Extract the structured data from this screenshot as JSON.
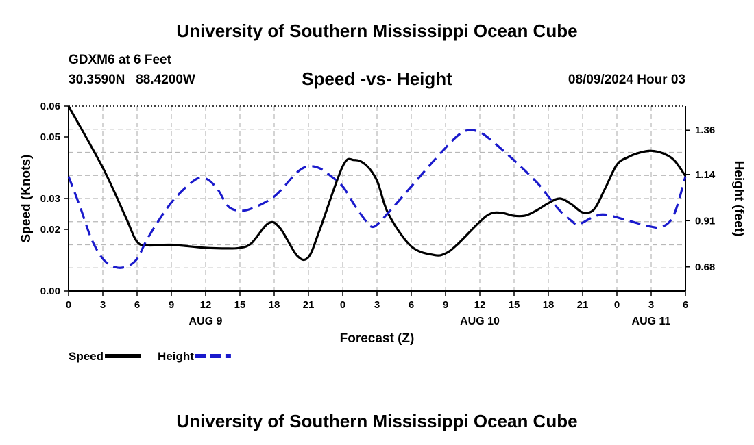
{
  "header": {
    "title": "University of Southern Mississippi Ocean Cube",
    "station": "GDXM6 at 6 Feet",
    "coordinates": "30.3590N   88.4200W",
    "run_time": "08/09/2024 Hour 03"
  },
  "footer": {
    "title": "University of Southern Mississippi Ocean Cube"
  },
  "colors": {
    "speed": "#000000",
    "height": "#1a1acc",
    "grid": "#b8b8b8"
  },
  "chart_data": {
    "type": "line",
    "title": "Speed -vs- Height",
    "xlabel": "Forecast (Z)",
    "ylabel_left": "Speed (Knots)",
    "ylabel_right": "Height (feet)",
    "x_range": [
      0,
      54
    ],
    "x_tick_labels": [
      "0",
      "3",
      "6",
      "9",
      "12",
      "15",
      "18",
      "21",
      "0",
      "3",
      "6",
      "9",
      "12",
      "15",
      "18",
      "21",
      "0",
      "3",
      "6"
    ],
    "date_labels": [
      {
        "label": "AUG 9",
        "at": 12
      },
      {
        "label": "AUG 10",
        "at": 36
      },
      {
        "label": "AUG 11",
        "at": 51
      }
    ],
    "left_axis": {
      "range": [
        0,
        0.06
      ],
      "ticks": [
        0.0,
        0.02,
        0.03,
        0.05,
        0.06
      ],
      "tick_labels": [
        "0.00",
        "0.02",
        "0.03",
        "0.05",
        "0.06"
      ]
    },
    "right_axis": {
      "range": [
        0.56,
        1.48
      ],
      "ticks": [
        0.68,
        0.91,
        1.14,
        1.36
      ],
      "tick_labels": [
        "0.68",
        "0.91",
        "1.14",
        "1.36"
      ]
    },
    "legend": [
      {
        "name": "Speed",
        "style": "solid"
      },
      {
        "name": "Height",
        "style": "dashed"
      }
    ],
    "series": [
      {
        "name": "Speed",
        "axis": "left",
        "points": [
          [
            0,
            0.06
          ],
          [
            3,
            0.04
          ],
          [
            5,
            0.024
          ],
          [
            6,
            0.016
          ],
          [
            7,
            0.0148
          ],
          [
            9,
            0.015
          ],
          [
            12,
            0.014
          ],
          [
            14,
            0.0138
          ],
          [
            15,
            0.014
          ],
          [
            16,
            0.0155
          ],
          [
            17.5,
            0.022
          ],
          [
            18.5,
            0.0205
          ],
          [
            20,
            0.0115
          ],
          [
            21,
            0.011
          ],
          [
            22,
            0.02
          ],
          [
            24,
            0.0405
          ],
          [
            25,
            0.0425
          ],
          [
            26,
            0.041
          ],
          [
            27,
            0.0358
          ],
          [
            28,
            0.025
          ],
          [
            30,
            0.0145
          ],
          [
            32,
            0.0117
          ],
          [
            33,
            0.0122
          ],
          [
            34,
            0.015
          ],
          [
            36,
            0.0225
          ],
          [
            37,
            0.0252
          ],
          [
            38,
            0.0253
          ],
          [
            39,
            0.0244
          ],
          [
            40,
            0.0245
          ],
          [
            41,
            0.0262
          ],
          [
            42,
            0.0285
          ],
          [
            43,
            0.03
          ],
          [
            44,
            0.0282
          ],
          [
            45,
            0.0255
          ],
          [
            46,
            0.0265
          ],
          [
            47,
            0.0335
          ],
          [
            48,
            0.041
          ],
          [
            49,
            0.0435
          ],
          [
            50,
            0.0449
          ],
          [
            51,
            0.0455
          ],
          [
            52,
            0.0447
          ],
          [
            53,
            0.0425
          ],
          [
            54,
            0.0373
          ]
        ]
      },
      {
        "name": "Height",
        "axis": "right",
        "points": [
          [
            0,
            1.13
          ],
          [
            1,
            0.98
          ],
          [
            2,
            0.82
          ],
          [
            3,
            0.72
          ],
          [
            4,
            0.68
          ],
          [
            5,
            0.68
          ],
          [
            6,
            0.72
          ],
          [
            7,
            0.83
          ],
          [
            9,
            1.0
          ],
          [
            11,
            1.11
          ],
          [
            12,
            1.12
          ],
          [
            13,
            1.07
          ],
          [
            14,
            0.98
          ],
          [
            15,
            0.96
          ],
          [
            16,
            0.97
          ],
          [
            18,
            1.03
          ],
          [
            20,
            1.15
          ],
          [
            21,
            1.18
          ],
          [
            22,
            1.17
          ],
          [
            23,
            1.13
          ],
          [
            24,
            1.08
          ],
          [
            25,
            0.99
          ],
          [
            26,
            0.91
          ],
          [
            26.5,
            0.88
          ],
          [
            27,
            0.89
          ],
          [
            28,
            0.95
          ],
          [
            30,
            1.08
          ],
          [
            32,
            1.21
          ],
          [
            34,
            1.33
          ],
          [
            35,
            1.36
          ],
          [
            36,
            1.35
          ],
          [
            37,
            1.31
          ],
          [
            39,
            1.21
          ],
          [
            41,
            1.1
          ],
          [
            42,
            1.03
          ],
          [
            43,
            0.96
          ],
          [
            44,
            0.91
          ],
          [
            44.5,
            0.89
          ],
          [
            45,
            0.9
          ],
          [
            46,
            0.93
          ],
          [
            47,
            0.94
          ],
          [
            49,
            0.91
          ],
          [
            51,
            0.88
          ],
          [
            52,
            0.88
          ],
          [
            53,
            0.94
          ],
          [
            54,
            1.13
          ]
        ]
      }
    ]
  }
}
